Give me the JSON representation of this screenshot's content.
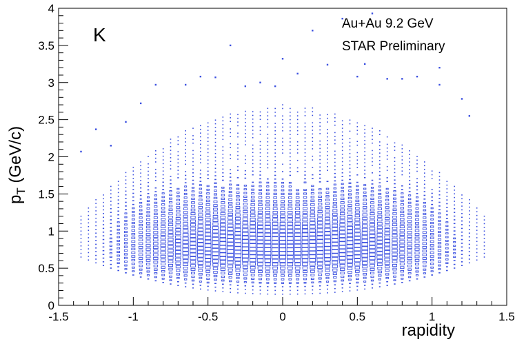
{
  "chart_data": {
    "type": "heatmap",
    "style": "box",
    "title": "",
    "xlabel": "rapidity",
    "ylabel_main": "p",
    "ylabel_sub": "T",
    "ylabel_unit": " (GeV/c)",
    "panel_label": "K",
    "annotations": [
      "Au+Au 9.2 GeV",
      "STAR Preliminary"
    ],
    "xlim": [
      -1.5,
      1.5
    ],
    "ylim": [
      0,
      4
    ],
    "x_ticks": [
      "-1.5",
      "-1",
      "-0.5",
      "0",
      "0.5",
      "1",
      "1.5"
    ],
    "y_ticks": [
      "0",
      "0.5",
      "1",
      "1.5",
      "2",
      "2.5",
      "3",
      "3.5",
      "4"
    ],
    "marker_color": "#3a4fe0",
    "x_bin_width": 0.05,
    "y_bin_width": 0.05,
    "density_model": {
      "peak_pt": 0.72,
      "pt_width_low": 0.28,
      "pt_width_high": 0.62,
      "rapidity_center": 0.0,
      "rapidity_width": 0.95,
      "pt_max_at_center": 2.7,
      "pt_min": 0.15,
      "rapidity_extent": 1.35
    },
    "sparse_points": [
      [
        -1.35,
        2.07
      ],
      [
        -1.25,
        2.37
      ],
      [
        -1.15,
        2.15
      ],
      [
        -1.05,
        2.47
      ],
      [
        -0.95,
        2.72
      ],
      [
        -0.85,
        2.97
      ],
      [
        -0.65,
        2.97
      ],
      [
        -0.55,
        3.08
      ],
      [
        -0.45,
        3.07
      ],
      [
        -0.35,
        3.5
      ],
      [
        -0.25,
        2.95
      ],
      [
        -0.15,
        3.0
      ],
      [
        -0.05,
        2.95
      ],
      [
        0.0,
        3.32
      ],
      [
        0.1,
        3.12
      ],
      [
        0.2,
        3.7
      ],
      [
        0.3,
        3.24
      ],
      [
        0.4,
        3.86
      ],
      [
        0.5,
        3.08
      ],
      [
        0.6,
        3.93
      ],
      [
        0.55,
        3.25
      ],
      [
        0.7,
        3.05
      ],
      [
        0.8,
        3.05
      ],
      [
        0.9,
        3.08
      ],
      [
        1.05,
        3.2
      ],
      [
        1.05,
        2.97
      ],
      [
        1.2,
        2.78
      ],
      [
        1.25,
        2.55
      ]
    ]
  }
}
